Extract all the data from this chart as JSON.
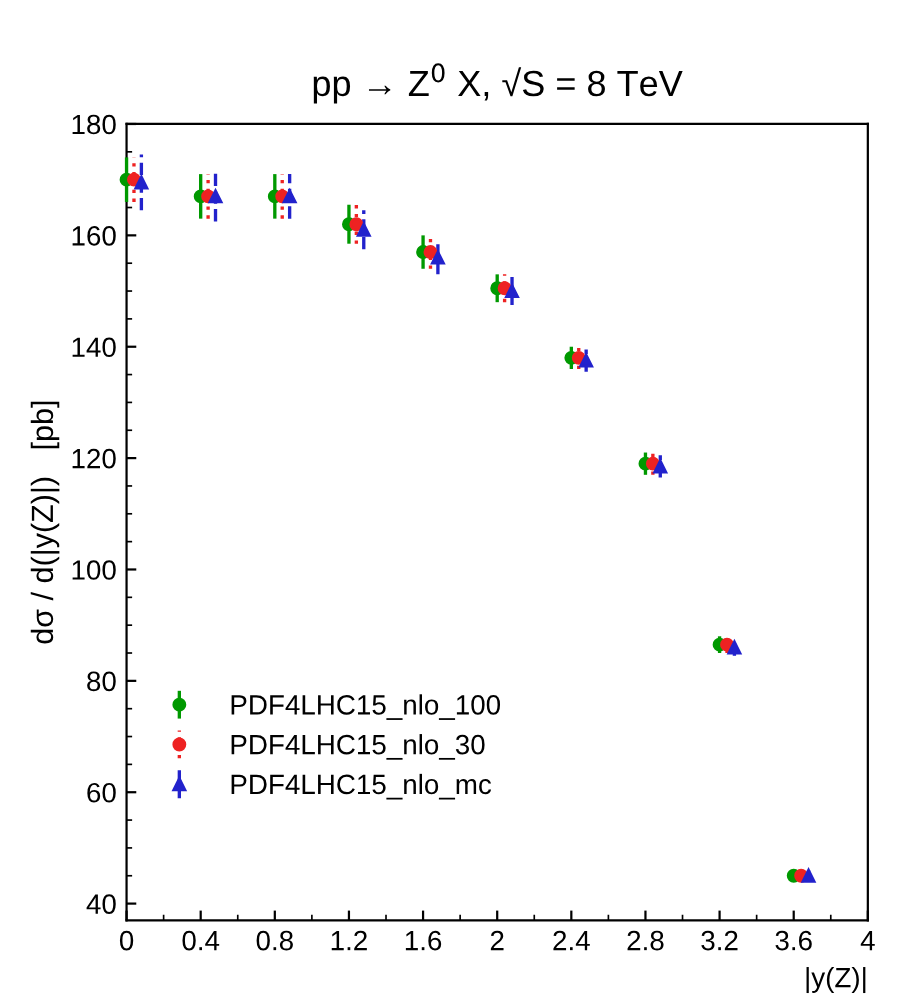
{
  "chart_data": {
    "type": "scatter",
    "title": "pp → Z$^{0}$ X, √S = 8 TeV",
    "xlabel": "|y(Z)|",
    "ylabel": "dσ / d(|y(Z)|)   [pb]",
    "xlim": [
      0,
      4
    ],
    "xticks": [
      0,
      0.4,
      0.8,
      1.2,
      1.6,
      2,
      2.4,
      2.8,
      3.2,
      3.6,
      4
    ],
    "ylim": [
      37,
      180
    ],
    "yticks": [
      40,
      60,
      80,
      100,
      120,
      140,
      160,
      180
    ],
    "grid": false,
    "legend": "lower left",
    "series": [
      {
        "name": "PDF4LHC15_nlo_100",
        "color": "#009900",
        "marker": "circle",
        "line_style": "solid",
        "x": [
          0,
          0.4,
          0.8,
          1.2,
          1.6,
          2,
          2.4,
          2.8,
          3.2,
          3.6
        ],
        "values": [
          170,
          167,
          167,
          162,
          157,
          150.5,
          138,
          119,
          86.5,
          45
        ],
        "errors": [
          4,
          4,
          4,
          3.5,
          3,
          2.5,
          2,
          2,
          1.5,
          1
        ]
      },
      {
        "name": "PDF4LHC15_nlo_30",
        "color": "#ee2222",
        "marker": "circle",
        "line_style": "dotted",
        "x": [
          0.04,
          0.44,
          0.84,
          1.24,
          1.64,
          2.04,
          2.44,
          2.84,
          3.24,
          3.64
        ],
        "values": [
          170,
          167,
          167,
          162,
          157,
          150.5,
          138,
          119,
          86.5,
          45
        ],
        "errors": [
          4,
          4,
          4,
          3.5,
          3,
          2.5,
          2,
          2,
          1.5,
          1
        ]
      },
      {
        "name": "PDF4LHC15_nlo_mc",
        "color": "#2222cc",
        "marker": "triangle",
        "line_style": "dashed",
        "x": [
          0.08,
          0.48,
          0.88,
          1.28,
          1.68,
          2.08,
          2.48,
          2.88,
          3.28,
          3.68
        ],
        "values": [
          169.5,
          167,
          167,
          161,
          156,
          150,
          137.5,
          118.5,
          86,
          45
        ],
        "errors": [
          5,
          4.5,
          4,
          3.5,
          3,
          2.5,
          2,
          2,
          1.5,
          1
        ]
      }
    ]
  }
}
